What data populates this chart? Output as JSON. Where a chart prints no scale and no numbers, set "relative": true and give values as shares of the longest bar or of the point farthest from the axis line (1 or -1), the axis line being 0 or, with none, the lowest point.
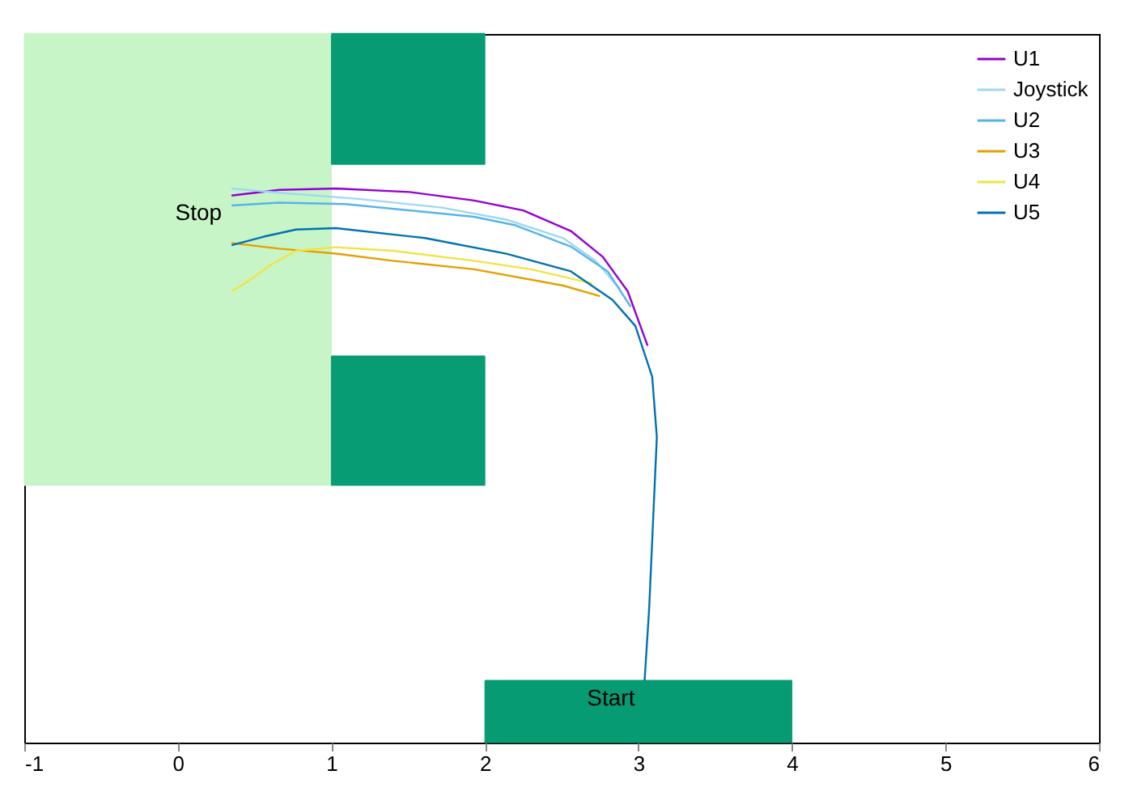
{
  "chart_data": {
    "type": "line",
    "relative": true,
    "xlim": [
      -1,
      6
    ],
    "xticks": [
      -1,
      0,
      1,
      2,
      3,
      4,
      5,
      6
    ],
    "tick_labels": "x",
    "grid": false,
    "legend": "top right",
    "series": [
      {
        "color": "#c8f5c8",
        "x": [
          -1,
          1
        ],
        "values": [
          1,
          1
        ],
        "lower": [
          0.363,
          0.363
        ],
        "upper": [
          1,
          1
        ]
      },
      {
        "color": "#079b74",
        "x": [
          1,
          2
        ],
        "values": [
          1,
          1
        ],
        "lower": [
          0.816,
          0.816
        ],
        "upper": [
          1,
          1
        ]
      },
      {
        "color": "#089c75",
        "x": [
          1,
          2
        ],
        "values": [
          0.545,
          0.545
        ],
        "lower": [
          0.363,
          0.363
        ],
        "upper": [
          0.545,
          0.545
        ]
      },
      {
        "color": "#079b74",
        "x": [
          2,
          4
        ],
        "values": [
          0.087,
          0.087
        ],
        "lower": [
          0,
          0
        ],
        "upper": [
          0.087,
          0.087
        ]
      },
      {
        "name": "U1",
        "color": "#9400d3",
        "x": [
          3.06,
          2.93,
          2.77,
          2.56,
          2.25,
          1.93,
          1.51,
          1.03,
          0.66,
          0.35
        ],
        "values": [
          0.56,
          0.637,
          0.685,
          0.722,
          0.751,
          0.765,
          0.777,
          0.782,
          0.78,
          0.772
        ]
      },
      {
        "name": "Joystick",
        "color": "#a0d8f0",
        "x": [
          2.88,
          2.72,
          2.51,
          2.14,
          1.72,
          1.19,
          0.66,
          0.35
        ],
        "values": [
          0.64,
          0.68,
          0.712,
          0.738,
          0.755,
          0.767,
          0.776,
          0.782
        ]
      },
      {
        "name": "U2",
        "color": "#56b4e9",
        "x": [
          2.95,
          2.8,
          2.56,
          2.2,
          1.93,
          1.09,
          0.66,
          0.35
        ],
        "values": [
          0.615,
          0.665,
          0.7,
          0.73,
          0.742,
          0.76,
          0.762,
          0.758
        ]
      },
      {
        "name": "U3",
        "color": "#e69f00",
        "x": [
          2.75,
          2.51,
          1.93,
          1.4,
          1.03,
          0.66,
          0.35
        ],
        "values": [
          0.63,
          0.645,
          0.668,
          0.68,
          0.69,
          0.697,
          0.705
        ]
      },
      {
        "name": "U4",
        "color": "#f0e442",
        "x": [
          2.7,
          2.3,
          1.93,
          1.4,
          1.03,
          0.77,
          0.61,
          0.45,
          0.35
        ],
        "values": [
          0.648,
          0.668,
          0.68,
          0.694,
          0.699,
          0.694,
          0.675,
          0.65,
          0.637
        ]
      },
      {
        "name": "U5",
        "color": "#0072b2",
        "x": [
          3.04,
          3.07,
          3.09,
          3.11,
          3.12,
          3.09,
          2.98,
          2.83,
          2.56,
          2.14,
          1.61,
          1.03,
          0.77,
          0.56,
          0.35
        ],
        "values": [
          0.087,
          0.189,
          0.286,
          0.383,
          0.431,
          0.516,
          0.588,
          0.625,
          0.665,
          0.69,
          0.712,
          0.726,
          0.724,
          0.714,
          0.702
        ]
      }
    ],
    "annotations": [
      {
        "text": "Stop",
        "x": 0.35,
        "y": 0.772
      },
      {
        "text": "Start",
        "x": 3.04,
        "y": 0.087
      }
    ]
  }
}
